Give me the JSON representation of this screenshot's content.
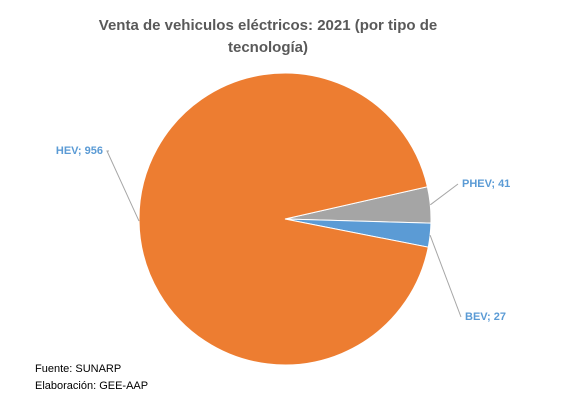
{
  "chart_data": {
    "type": "pie",
    "title_lines": [
      "Venta de vehiculos eléctricos: 2021 (por tipo de",
      "tecnología)"
    ],
    "categories": [
      "PHEV",
      "BEV",
      "HEV"
    ],
    "values": [
      41,
      27,
      956
    ],
    "colors": [
      "#a5a5a5",
      "#5b9bd5",
      "#ed7d31"
    ],
    "label_colors": [
      "#5b9bd5",
      "#5b9bd5",
      "#5b9bd5"
    ],
    "labels": [
      "PHEV; 41",
      "BEV; 27",
      "HEV; 956"
    ],
    "legend": "none"
  },
  "footnotes": {
    "source": "Fuente: SUNARP",
    "prepared_by": "Elaboración: GEE-AAP"
  }
}
